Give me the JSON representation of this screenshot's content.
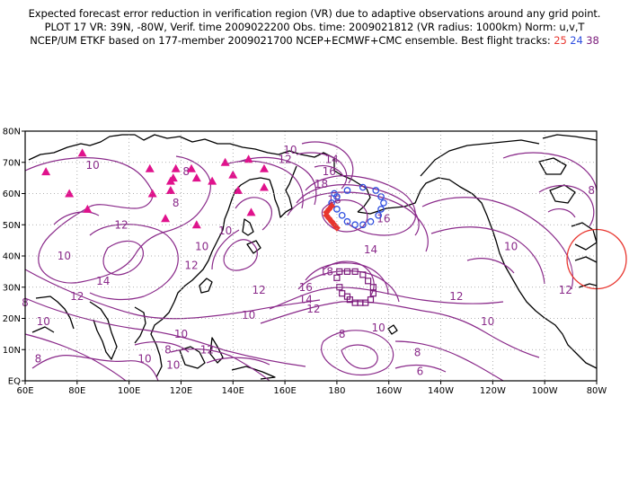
{
  "header": {
    "line1": "Expected forecast error reduction in verification region (VR) due to adaptive observations around any grid point.",
    "line2": "PLOT 17 VR: 39N, -80W, Verif. time 2009022200 Obs. time: 2009021812 (VR radius: 1000km) Norm: u,v,T",
    "line3": "NCEP/UM ETKF based on 177-member 2009021700 NCEP+ECMWF+CMC ensemble. Best flight tracks:",
    "track_ids": [
      "25",
      "24",
      "38"
    ]
  },
  "axes": {
    "lat_labels": [
      "80N",
      "70N",
      "60N",
      "50N",
      "40N",
      "30N",
      "20N",
      "10N",
      "EQ"
    ],
    "lon_labels": [
      "60E",
      "80E",
      "100E",
      "120E",
      "140E",
      "160E",
      "180",
      "160W",
      "140W",
      "120W",
      "100W",
      "80W"
    ]
  },
  "contour_labels": [
    {
      "text": "10",
      "lon": 86,
      "lat": 69
    },
    {
      "text": "8",
      "lon": 122,
      "lat": 67
    },
    {
      "text": "8",
      "lon": 118,
      "lat": 57
    },
    {
      "text": "10",
      "lon": 162,
      "lat": 74
    },
    {
      "text": "12",
      "lon": 160,
      "lat": 71
    },
    {
      "text": "14",
      "lon": 178,
      "lat": 71
    },
    {
      "text": "16",
      "lon": 177,
      "lat": 67
    },
    {
      "text": "18",
      "lon": 174,
      "lat": 63
    },
    {
      "text": "18",
      "lon": 179,
      "lat": 58
    },
    {
      "text": "16",
      "lon": -162,
      "lat": 52
    },
    {
      "text": "14",
      "lon": -167,
      "lat": 42
    },
    {
      "text": "12",
      "lon": 97,
      "lat": 50
    },
    {
      "text": "10",
      "lon": 75,
      "lat": 40
    },
    {
      "text": "14",
      "lon": 90,
      "lat": 32
    },
    {
      "text": "12",
      "lon": 80,
      "lat": 27
    },
    {
      "text": "12",
      "lon": 124,
      "lat": 37
    },
    {
      "text": "10",
      "lon": 128,
      "lat": 43
    },
    {
      "text": "10",
      "lon": 137,
      "lat": 48
    },
    {
      "text": "8",
      "lon": 60,
      "lat": 25
    },
    {
      "text": "10",
      "lon": 67,
      "lat": 19
    },
    {
      "text": "8",
      "lon": 65,
      "lat": 7
    },
    {
      "text": "10",
      "lon": 106,
      "lat": 7
    },
    {
      "text": "10",
      "lon": 117,
      "lat": 5
    },
    {
      "text": "8",
      "lon": 115,
      "lat": 10
    },
    {
      "text": "10",
      "lon": 120,
      "lat": 15
    },
    {
      "text": "12",
      "lon": 130,
      "lat": 10
    },
    {
      "text": "10",
      "lon": 146,
      "lat": 21
    },
    {
      "text": "12",
      "lon": 150,
      "lat": 29
    },
    {
      "text": "18",
      "lon": 176,
      "lat": 35
    },
    {
      "text": "16",
      "lon": 168,
      "lat": 30
    },
    {
      "text": "14",
      "lon": 168,
      "lat": 26
    },
    {
      "text": "12",
      "lon": 171,
      "lat": 23
    },
    {
      "text": "8",
      "lon": -178,
      "lat": 15
    },
    {
      "text": "10",
      "lon": -164,
      "lat": 17
    },
    {
      "text": "8",
      "lon": -149,
      "lat": 9
    },
    {
      "text": "6",
      "lon": -148,
      "lat": 3
    },
    {
      "text": "12",
      "lon": -134,
      "lat": 27
    },
    {
      "text": "10",
      "lon": -122,
      "lat": 19
    },
    {
      "text": "10",
      "lon": -113,
      "lat": 43
    },
    {
      "text": "12",
      "lon": -92,
      "lat": 29
    },
    {
      "text": "8",
      "lon": -82,
      "lat": 61
    }
  ],
  "markers": {
    "triangles_color": "#e0128c",
    "triangles": [
      [
        68,
        67
      ],
      [
        77,
        60
      ],
      [
        82,
        73
      ],
      [
        84,
        55
      ],
      [
        108,
        68
      ],
      [
        109,
        60
      ],
      [
        114,
        52
      ],
      [
        116,
        64
      ],
      [
        116,
        61
      ],
      [
        117,
        65
      ],
      [
        118,
        68
      ],
      [
        124,
        68
      ],
      [
        126,
        65
      ],
      [
        126,
        50
      ],
      [
        132,
        64
      ],
      [
        137,
        70
      ],
      [
        140,
        66
      ],
      [
        142,
        61
      ],
      [
        146,
        71
      ],
      [
        147,
        54
      ],
      [
        152,
        68
      ],
      [
        152,
        62
      ]
    ],
    "track_25_color": "#e8352e",
    "track_25": [
      [
        178,
        56
      ],
      [
        177,
        55
      ],
      [
        176,
        54
      ],
      [
        176,
        53
      ],
      [
        177,
        52
      ],
      [
        178,
        51
      ],
      [
        179,
        50
      ],
      [
        180,
        49
      ]
    ],
    "track_24_color": "#2f4fe0",
    "track_24": [
      [
        179,
        60
      ],
      [
        178,
        57
      ],
      [
        180,
        55
      ],
      [
        -178,
        53
      ],
      [
        -176,
        51
      ],
      [
        -173,
        50
      ],
      [
        -170,
        50
      ],
      [
        -167,
        51
      ],
      [
        -164,
        53
      ],
      [
        -163,
        55
      ],
      [
        -162,
        57
      ],
      [
        -163,
        59
      ],
      [
        -165,
        61
      ],
      [
        -170,
        62
      ],
      [
        -176,
        61
      ],
      [
        -180,
        59
      ]
    ],
    "track_38_color": "#7a1a7a",
    "track_38": [
      [
        -179,
        30
      ],
      [
        -178,
        28
      ],
      [
        -176,
        27
      ],
      [
        -175,
        26
      ],
      [
        -173,
        25
      ],
      [
        -171,
        25
      ],
      [
        -169,
        25
      ],
      [
        -167,
        26
      ],
      [
        -166,
        28
      ],
      [
        -166,
        30
      ],
      [
        -168,
        32
      ],
      [
        -170,
        34
      ],
      [
        -173,
        35
      ],
      [
        -176,
        35
      ],
      [
        -179,
        35
      ],
      [
        -180,
        33
      ]
    ],
    "vr_circle_color": "#e8352e"
  }
}
